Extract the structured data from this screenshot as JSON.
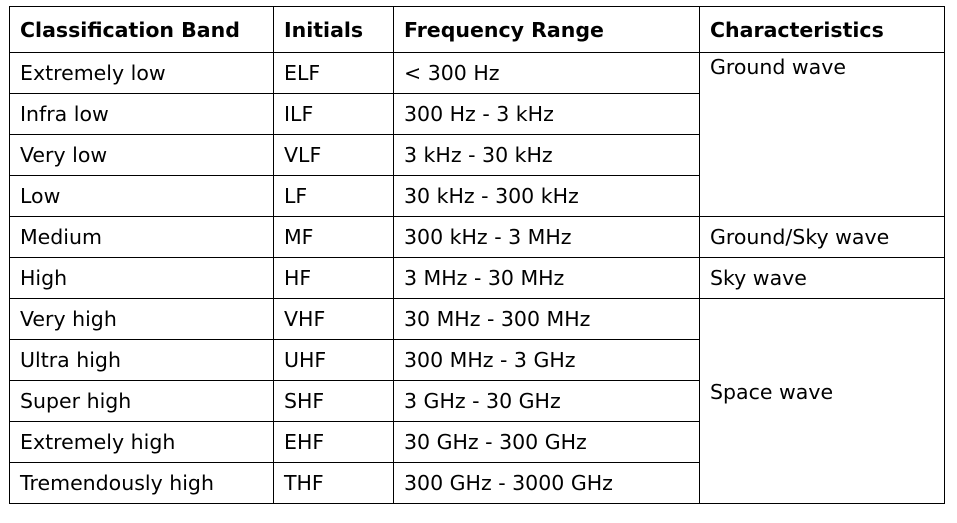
{
  "table": {
    "headers": [
      "Classification Band",
      "Initials",
      "Frequency Range",
      "Characteristics"
    ],
    "rows": [
      {
        "band": "Extremely low",
        "initials": "ELF",
        "range": "< 300 Hz"
      },
      {
        "band": "Infra low",
        "initials": "ILF",
        "range": "300 Hz - 3 kHz"
      },
      {
        "band": "Very low",
        "initials": "VLF",
        "range": "3 kHz - 30 kHz"
      },
      {
        "band": "Low",
        "initials": "LF",
        "range": "30 kHz - 300 kHz"
      },
      {
        "band": "Medium",
        "initials": "MF",
        "range": "300 kHz - 3 MHz"
      },
      {
        "band": "High",
        "initials": "HF",
        "range": "3 MHz - 30 MHz"
      },
      {
        "band": "Very high",
        "initials": "VHF",
        "range": "30 MHz - 300 MHz"
      },
      {
        "band": "Ultra high",
        "initials": "UHF",
        "range": "300 MHz - 3 GHz"
      },
      {
        "band": "Super high",
        "initials": "SHF",
        "range": "3 GHz - 30 GHz"
      },
      {
        "band": "Extremely high",
        "initials": "EHF",
        "range": "30 GHz - 300 GHz"
      },
      {
        "band": "Tremendously high",
        "initials": "THF",
        "range": "300 GHz - 3000 GHz"
      }
    ],
    "characteristics": [
      "Ground wave",
      "Ground/Sky wave",
      "Sky wave",
      "Space wave"
    ]
  }
}
